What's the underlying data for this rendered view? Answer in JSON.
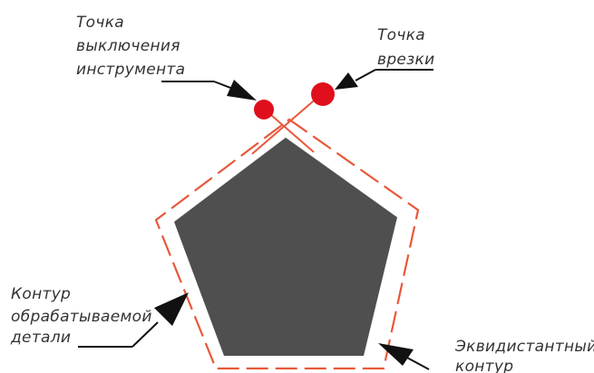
{
  "labels": {
    "tool_off_point": [
      "Точка",
      "выключения",
      "инструмента"
    ],
    "entry_point": [
      "Точка",
      "врезки"
    ],
    "part_contour": [
      "Контур",
      "обрабатываемой",
      "детали"
    ],
    "equidistant_contour": [
      "Эквидистантный",
      "контур"
    ]
  },
  "colors": {
    "part_fill": "#4f4f4f",
    "equidistant_stroke": "#e8583a",
    "points": "#e00f1c",
    "leaders": "#111111",
    "text": "#333333"
  }
}
